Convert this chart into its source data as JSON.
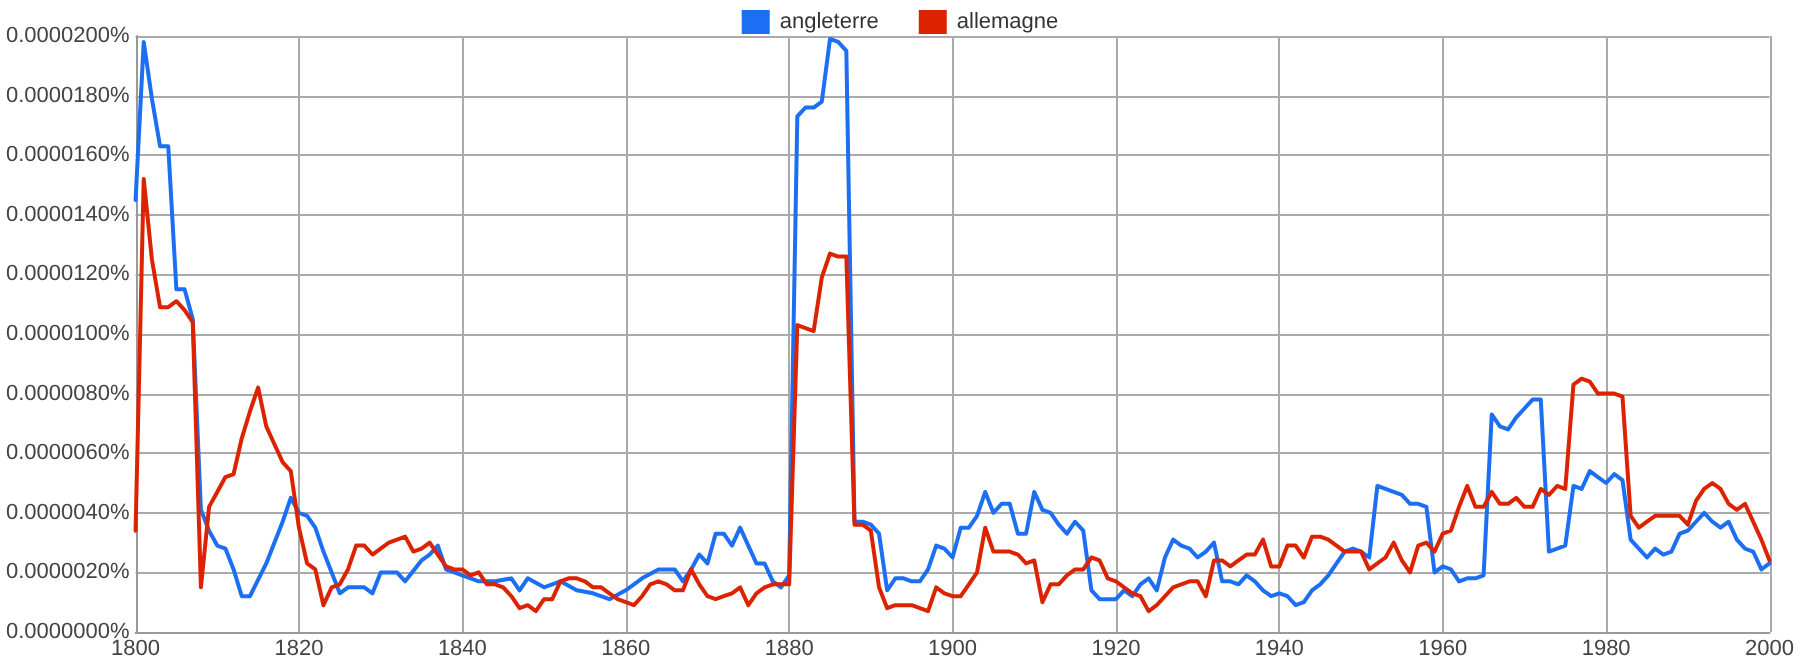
{
  "chart_data": {
    "type": "line",
    "legend": "top",
    "grid": true,
    "marker": "none",
    "line_style": "solid",
    "xlim": [
      1800,
      2000
    ],
    "xticks": [
      1800,
      1820,
      1840,
      1860,
      1880,
      1900,
      1920,
      1940,
      1960,
      1980,
      2000
    ],
    "ylim": [
      0,
      2e-05
    ],
    "yticks": [
      {
        "value": 0,
        "label": "0.0000000%"
      },
      {
        "value": 2e-06,
        "label": "0.0000020%"
      },
      {
        "value": 4e-06,
        "label": "0.0000040%"
      },
      {
        "value": 6e-06,
        "label": "0.0000060%"
      },
      {
        "value": 8e-06,
        "label": "0.0000080%"
      },
      {
        "value": 1e-05,
        "label": "0.0000100%"
      },
      {
        "value": 1.2e-05,
        "label": "0.0000120%"
      },
      {
        "value": 1.4e-05,
        "label": "0.0000140%"
      },
      {
        "value": 1.6e-05,
        "label": "0.0000160%"
      },
      {
        "value": 1.8e-05,
        "label": "0.0000180%"
      },
      {
        "value": 2e-05,
        "label": "0.0000200%"
      }
    ],
    "series": [
      {
        "name": "angleterre",
        "color": "#1c6ff2",
        "x": [
          1800,
          1801,
          1802,
          1803,
          1804,
          1805,
          1806,
          1807,
          1808,
          1809,
          1810,
          1811,
          1812,
          1813,
          1814,
          1816,
          1818,
          1819,
          1820,
          1821,
          1822,
          1823,
          1825,
          1826,
          1828,
          1829,
          1830,
          1832,
          1833,
          1835,
          1836,
          1837,
          1838,
          1840,
          1842,
          1844,
          1846,
          1847,
          1848,
          1850,
          1852,
          1854,
          1856,
          1858,
          1860,
          1862,
          1864,
          1866,
          1867,
          1868,
          1869,
          1870,
          1871,
          1872,
          1873,
          1874,
          1875,
          1876,
          1877,
          1878,
          1879,
          1880,
          1881,
          1882,
          1883,
          1884,
          1885,
          1886,
          1887,
          1888,
          1889,
          1890,
          1891,
          1892,
          1893,
          1894,
          1895,
          1896,
          1897,
          1898,
          1899,
          1900,
          1901,
          1902,
          1903,
          1904,
          1905,
          1906,
          1907,
          1908,
          1909,
          1910,
          1911,
          1912,
          1913,
          1914,
          1915,
          1916,
          1917,
          1918,
          1919,
          1920,
          1921,
          1922,
          1923,
          1924,
          1925,
          1926,
          1927,
          1928,
          1929,
          1930,
          1931,
          1932,
          1933,
          1934,
          1935,
          1936,
          1937,
          1938,
          1939,
          1940,
          1941,
          1942,
          1943,
          1944,
          1945,
          1946,
          1947,
          1948,
          1949,
          1950,
          1951,
          1952,
          1953,
          1954,
          1955,
          1956,
          1957,
          1958,
          1959,
          1960,
          1961,
          1962,
          1963,
          1964,
          1965,
          1966,
          1967,
          1968,
          1969,
          1970,
          1971,
          1972,
          1973,
          1974,
          1975,
          1976,
          1977,
          1978,
          1979,
          1980,
          1981,
          1982,
          1983,
          1984,
          1985,
          1986,
          1987,
          1988,
          1989,
          1990,
          1991,
          1992,
          1993,
          1994,
          1995,
          1996,
          1997,
          1998,
          1999,
          2000
        ],
        "values": [
          1.45e-05,
          1.98e-05,
          1.79e-05,
          1.63e-05,
          1.63e-05,
          1.15e-05,
          1.15e-05,
          1.05e-05,
          4.1e-06,
          3.4e-06,
          2.9e-06,
          2.8e-06,
          2.1e-06,
          1.2e-06,
          1.2e-06,
          2.3e-06,
          3.7e-06,
          4.5e-06,
          4e-06,
          3.9e-06,
          3.5e-06,
          2.7e-06,
          1.3e-06,
          1.5e-06,
          1.5e-06,
          1.3e-06,
          2e-06,
          2e-06,
          1.7e-06,
          2.4e-06,
          2.6e-06,
          2.9e-06,
          2.1e-06,
          1.9e-06,
          1.7e-06,
          1.7e-06,
          1.8e-06,
          1.4e-06,
          1.8e-06,
          1.5e-06,
          1.7e-06,
          1.4e-06,
          1.3e-06,
          1.1e-06,
          1.4e-06,
          1.8e-06,
          2.1e-06,
          2.1e-06,
          1.7e-06,
          2.1e-06,
          2.6e-06,
          2.3e-06,
          3.3e-06,
          3.3e-06,
          2.9e-06,
          3.5e-06,
          2.9e-06,
          2.3e-06,
          2.3e-06,
          1.7e-06,
          1.5e-06,
          1.9e-06,
          1.73e-05,
          1.76e-05,
          1.76e-05,
          1.78e-05,
          1.99e-05,
          1.98e-05,
          1.95e-05,
          3.7e-06,
          3.7e-06,
          3.6e-06,
          3.3e-06,
          1.4e-06,
          1.8e-06,
          1.8e-06,
          1.7e-06,
          1.7e-06,
          2.1e-06,
          2.9e-06,
          2.8e-06,
          2.5e-06,
          3.5e-06,
          3.5e-06,
          3.9e-06,
          4.7e-06,
          4e-06,
          4.3e-06,
          4.3e-06,
          3.3e-06,
          3.3e-06,
          4.7e-06,
          4.1e-06,
          4e-06,
          3.6e-06,
          3.3e-06,
          3.7e-06,
          3.4e-06,
          1.4e-06,
          1.1e-06,
          1.1e-06,
          1.1e-06,
          1.4e-06,
          1.2e-06,
          1.6e-06,
          1.8e-06,
          1.4e-06,
          2.5e-06,
          3.1e-06,
          2.9e-06,
          2.8e-06,
          2.5e-06,
          2.7e-06,
          3e-06,
          1.7e-06,
          1.7e-06,
          1.6e-06,
          1.9e-06,
          1.7e-06,
          1.4e-06,
          1.2e-06,
          1.3e-06,
          1.2e-06,
          9e-07,
          1e-06,
          1.4e-06,
          1.6e-06,
          1.9e-06,
          2.3e-06,
          2.7e-06,
          2.8e-06,
          2.7e-06,
          2.5e-06,
          4.9e-06,
          4.8e-06,
          4.7e-06,
          4.6e-06,
          4.3e-06,
          4.3e-06,
          4.2e-06,
          2e-06,
          2.2e-06,
          2.1e-06,
          1.7e-06,
          1.8e-06,
          1.8e-06,
          1.9e-06,
          7.3e-06,
          6.9e-06,
          6.8e-06,
          7.2e-06,
          7.5e-06,
          7.8e-06,
          7.8e-06,
          2.7e-06,
          2.8e-06,
          2.9e-06,
          4.9e-06,
          4.8e-06,
          5.4e-06,
          5.2e-06,
          5e-06,
          5.3e-06,
          5.1e-06,
          3.1e-06,
          2.8e-06,
          2.5e-06,
          2.8e-06,
          2.6e-06,
          2.7e-06,
          3.3e-06,
          3.4e-06,
          3.7e-06,
          4e-06,
          3.7e-06,
          3.5e-06,
          3.7e-06,
          3.1e-06,
          2.8e-06,
          2.7e-06,
          2.1e-06,
          2.3e-06
        ]
      },
      {
        "name": "allemagne",
        "color": "#dc2300",
        "x": [
          1800,
          1801,
          1802,
          1803,
          1804,
          1805,
          1806,
          1807,
          1808,
          1809,
          1810,
          1811,
          1812,
          1813,
          1814,
          1815,
          1816,
          1817,
          1818,
          1819,
          1820,
          1821,
          1822,
          1823,
          1824,
          1825,
          1826,
          1827,
          1828,
          1829,
          1830,
          1831,
          1832,
          1833,
          1834,
          1835,
          1836,
          1837,
          1838,
          1839,
          1840,
          1841,
          1842,
          1843,
          1844,
          1845,
          1846,
          1847,
          1848,
          1849,
          1850,
          1851,
          1852,
          1853,
          1854,
          1855,
          1856,
          1857,
          1858,
          1859,
          1860,
          1861,
          1862,
          1863,
          1864,
          1865,
          1866,
          1867,
          1868,
          1869,
          1870,
          1871,
          1872,
          1873,
          1874,
          1875,
          1876,
          1877,
          1878,
          1879,
          1880,
          1881,
          1882,
          1883,
          1884,
          1885,
          1886,
          1887,
          1888,
          1889,
          1890,
          1891,
          1892,
          1893,
          1894,
          1895,
          1896,
          1897,
          1898,
          1899,
          1900,
          1901,
          1902,
          1903,
          1904,
          1905,
          1906,
          1907,
          1908,
          1909,
          1910,
          1911,
          1912,
          1913,
          1914,
          1915,
          1916,
          1917,
          1918,
          1919,
          1920,
          1921,
          1922,
          1923,
          1924,
          1925,
          1926,
          1927,
          1928,
          1929,
          1930,
          1931,
          1932,
          1933,
          1934,
          1935,
          1936,
          1937,
          1938,
          1939,
          1940,
          1941,
          1942,
          1943,
          1944,
          1945,
          1946,
          1947,
          1948,
          1949,
          1950,
          1951,
          1952,
          1953,
          1954,
          1955,
          1956,
          1957,
          1958,
          1959,
          1960,
          1961,
          1962,
          1963,
          1964,
          1965,
          1966,
          1967,
          1968,
          1969,
          1970,
          1971,
          1972,
          1973,
          1974,
          1975,
          1976,
          1977,
          1978,
          1979,
          1980,
          1981,
          1982,
          1983,
          1984,
          1985,
          1986,
          1987,
          1988,
          1989,
          1990,
          1991,
          1992,
          1993,
          1994,
          1995,
          1996,
          1997,
          1998,
          1999,
          2000
        ],
        "values": [
          3.4e-06,
          1.52e-05,
          1.25e-05,
          1.09e-05,
          1.09e-05,
          1.11e-05,
          1.08e-05,
          1.04e-05,
          1.5e-06,
          4.2e-06,
          4.7e-06,
          5.2e-06,
          5.3e-06,
          6.5e-06,
          7.4e-06,
          8.2e-06,
          6.9e-06,
          6.3e-06,
          5.7e-06,
          5.4e-06,
          3.5e-06,
          2.3e-06,
          2.1e-06,
          9e-07,
          1.5e-06,
          1.6e-06,
          2.1e-06,
          2.9e-06,
          2.9e-06,
          2.6e-06,
          2.8e-06,
          3e-06,
          3.1e-06,
          3.2e-06,
          2.7e-06,
          2.8e-06,
          3e-06,
          2.6e-06,
          2.2e-06,
          2.1e-06,
          2.1e-06,
          1.9e-06,
          2e-06,
          1.6e-06,
          1.6e-06,
          1.5e-06,
          1.2e-06,
          8e-07,
          9e-07,
          7e-07,
          1.1e-06,
          1.1e-06,
          1.7e-06,
          1.8e-06,
          1.8e-06,
          1.7e-06,
          1.5e-06,
          1.5e-06,
          1.3e-06,
          1.1e-06,
          1e-06,
          9e-07,
          1.2e-06,
          1.6e-06,
          1.7e-06,
          1.6e-06,
          1.4e-06,
          1.4e-06,
          2.1e-06,
          1.6e-06,
          1.2e-06,
          1.1e-06,
          1.2e-06,
          1.3e-06,
          1.5e-06,
          9e-07,
          1.3e-06,
          1.5e-06,
          1.6e-06,
          1.6e-06,
          1.6e-06,
          1.03e-05,
          1.02e-05,
          1.01e-05,
          1.19e-05,
          1.27e-05,
          1.26e-05,
          1.26e-05,
          3.6e-06,
          3.6e-06,
          3.4e-06,
          1.5e-06,
          8e-07,
          9e-07,
          9e-07,
          9e-07,
          8e-07,
          7e-07,
          1.5e-06,
          1.3e-06,
          1.2e-06,
          1.2e-06,
          1.6e-06,
          2e-06,
          3.5e-06,
          2.7e-06,
          2.7e-06,
          2.7e-06,
          2.6e-06,
          2.3e-06,
          2.4e-06,
          1e-06,
          1.6e-06,
          1.6e-06,
          1.9e-06,
          2.1e-06,
          2.1e-06,
          2.5e-06,
          2.4e-06,
          1.8e-06,
          1.7e-06,
          1.5e-06,
          1.3e-06,
          1.2e-06,
          7e-07,
          9e-07,
          1.2e-06,
          1.5e-06,
          1.6e-06,
          1.7e-06,
          1.7e-06,
          1.2e-06,
          2.4e-06,
          2.4e-06,
          2.2e-06,
          2.4e-06,
          2.6e-06,
          2.6e-06,
          3.1e-06,
          2.2e-06,
          2.2e-06,
          2.9e-06,
          2.9e-06,
          2.5e-06,
          3.2e-06,
          3.2e-06,
          3.1e-06,
          2.9e-06,
          2.7e-06,
          2.7e-06,
          2.7e-06,
          2.1e-06,
          2.3e-06,
          2.5e-06,
          3e-06,
          2.4e-06,
          2e-06,
          2.9e-06,
          3e-06,
          2.7e-06,
          3.3e-06,
          3.4e-06,
          4.2e-06,
          4.9e-06,
          4.2e-06,
          4.2e-06,
          4.7e-06,
          4.3e-06,
          4.3e-06,
          4.5e-06,
          4.2e-06,
          4.2e-06,
          4.8e-06,
          4.6e-06,
          4.9e-06,
          4.8e-06,
          8.3e-06,
          8.5e-06,
          8.4e-06,
          8e-06,
          8e-06,
          8e-06,
          7.9e-06,
          3.9e-06,
          3.5e-06,
          3.7e-06,
          3.9e-06,
          3.9e-06,
          3.9e-06,
          3.9e-06,
          3.6e-06,
          4.4e-06,
          4.8e-06,
          5e-06,
          4.8e-06,
          4.3e-06,
          4.1e-06,
          4.3e-06,
          3.7e-06,
          3.1e-06,
          2.4e-06
        ]
      }
    ]
  }
}
